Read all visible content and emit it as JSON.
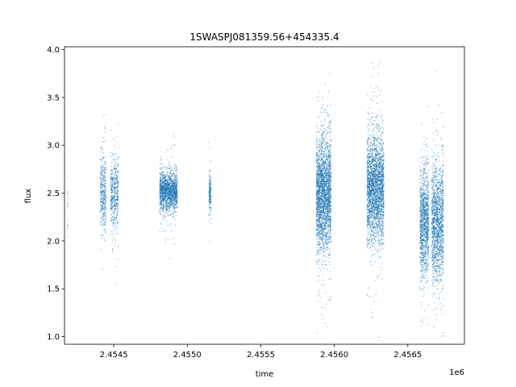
{
  "chart_data": {
    "type": "scatter",
    "title": "1SWASPJ081359.56+454335.4",
    "xlabel": "time",
    "ylabel": "flux",
    "x_offset_label": "1e6",
    "x_ticks": [
      2454500,
      2455000,
      2455500,
      2456000,
      2456500
    ],
    "x_tick_labels": [
      "2.4545",
      "2.4550",
      "2.4555",
      "2.4560",
      "2.4565"
    ],
    "y_ticks": [
      1.0,
      1.5,
      2.0,
      2.5,
      3.0,
      3.5,
      4.0
    ],
    "y_tick_labels": [
      "1.0",
      "1.5",
      "2.0",
      "2.5",
      "3.0",
      "3.5",
      "4.0"
    ],
    "xlim": [
      2454165,
      2456885
    ],
    "ylim": [
      0.92,
      4.03
    ],
    "marker_color": "#1f77b4",
    "grid": false,
    "legend": "none",
    "clusters": [
      {
        "x_start": 2454180,
        "x_end": 2454190,
        "center": 2.4,
        "spread": 0.22,
        "count": 14
      },
      {
        "x_start": 2454405,
        "x_end": 2454445,
        "center": 2.5,
        "spread": 0.18,
        "count": 380
      },
      {
        "x_start": 2454475,
        "x_end": 2454530,
        "center": 2.5,
        "spread": 0.2,
        "count": 480
      },
      {
        "x_start": 2454810,
        "x_end": 2454930,
        "center": 2.52,
        "spread": 0.1,
        "count": 1600
      },
      {
        "x_start": 2455145,
        "x_end": 2455160,
        "center": 2.5,
        "spread": 0.1,
        "count": 180
      },
      {
        "x_start": 2455875,
        "x_end": 2455975,
        "center": 2.5,
        "spread": 0.28,
        "count": 2600
      },
      {
        "x_start": 2456220,
        "x_end": 2456335,
        "center": 2.55,
        "spread": 0.27,
        "count": 2600
      },
      {
        "x_start": 2456580,
        "x_end": 2456640,
        "center": 2.2,
        "spread": 0.27,
        "count": 1200
      },
      {
        "x_start": 2456660,
        "x_end": 2456740,
        "center": 2.2,
        "spread": 0.3,
        "count": 1500
      }
    ]
  }
}
